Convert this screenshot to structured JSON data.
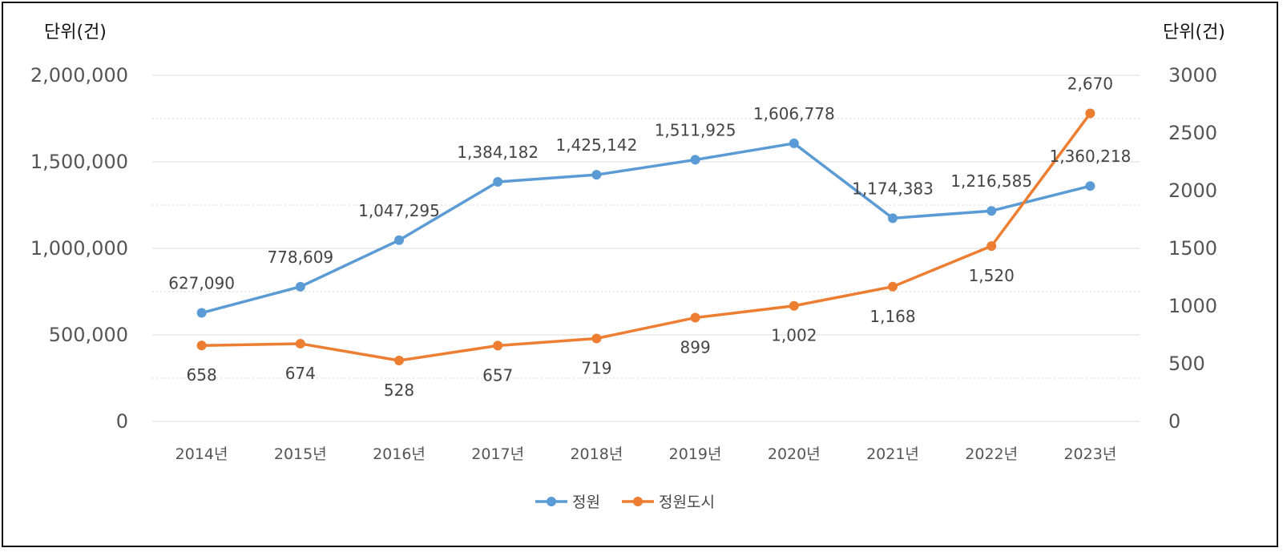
{
  "chart_data": {
    "type": "line",
    "title": "",
    "categories": [
      "2014년",
      "2015년",
      "2016년",
      "2017년",
      "2018년",
      "2019년",
      "2020년",
      "2021년",
      "2022년",
      "2023년"
    ],
    "y_left": {
      "unit_label": "단위(건)",
      "range": [
        0,
        2000000
      ],
      "ticks": [
        "0",
        "500,000",
        "1,000,000",
        "1,500,000",
        "2,000,000"
      ]
    },
    "y_right": {
      "unit_label": "단위(건)",
      "range": [
        0,
        3000
      ],
      "ticks": [
        "0",
        "500",
        "1000",
        "1500",
        "2000",
        "2500",
        "3000"
      ]
    },
    "grid": true,
    "legend_position": "bottom",
    "series": [
      {
        "name": "정원",
        "axis": "left",
        "color": "#5b9bd5",
        "values": [
          627090,
          778609,
          1047295,
          1384182,
          1425142,
          1511925,
          1606778,
          1174383,
          1216585,
          1360218
        ],
        "labels": [
          "627,090",
          "778,609",
          "1,047,295",
          "1,384,182",
          "1,425,142",
          "1,511,925",
          "1,606,778",
          "1,174,383",
          "1,216,585",
          "1,360,218"
        ]
      },
      {
        "name": "정원도시",
        "axis": "right",
        "color": "#ed7d31",
        "values": [
          658,
          674,
          528,
          657,
          719,
          899,
          1002,
          1168,
          1520,
          2670
        ],
        "labels": [
          "658",
          "674",
          "528",
          "657",
          "719",
          "899",
          "1,002",
          "1,168",
          "1,520",
          "2,670"
        ]
      }
    ]
  }
}
